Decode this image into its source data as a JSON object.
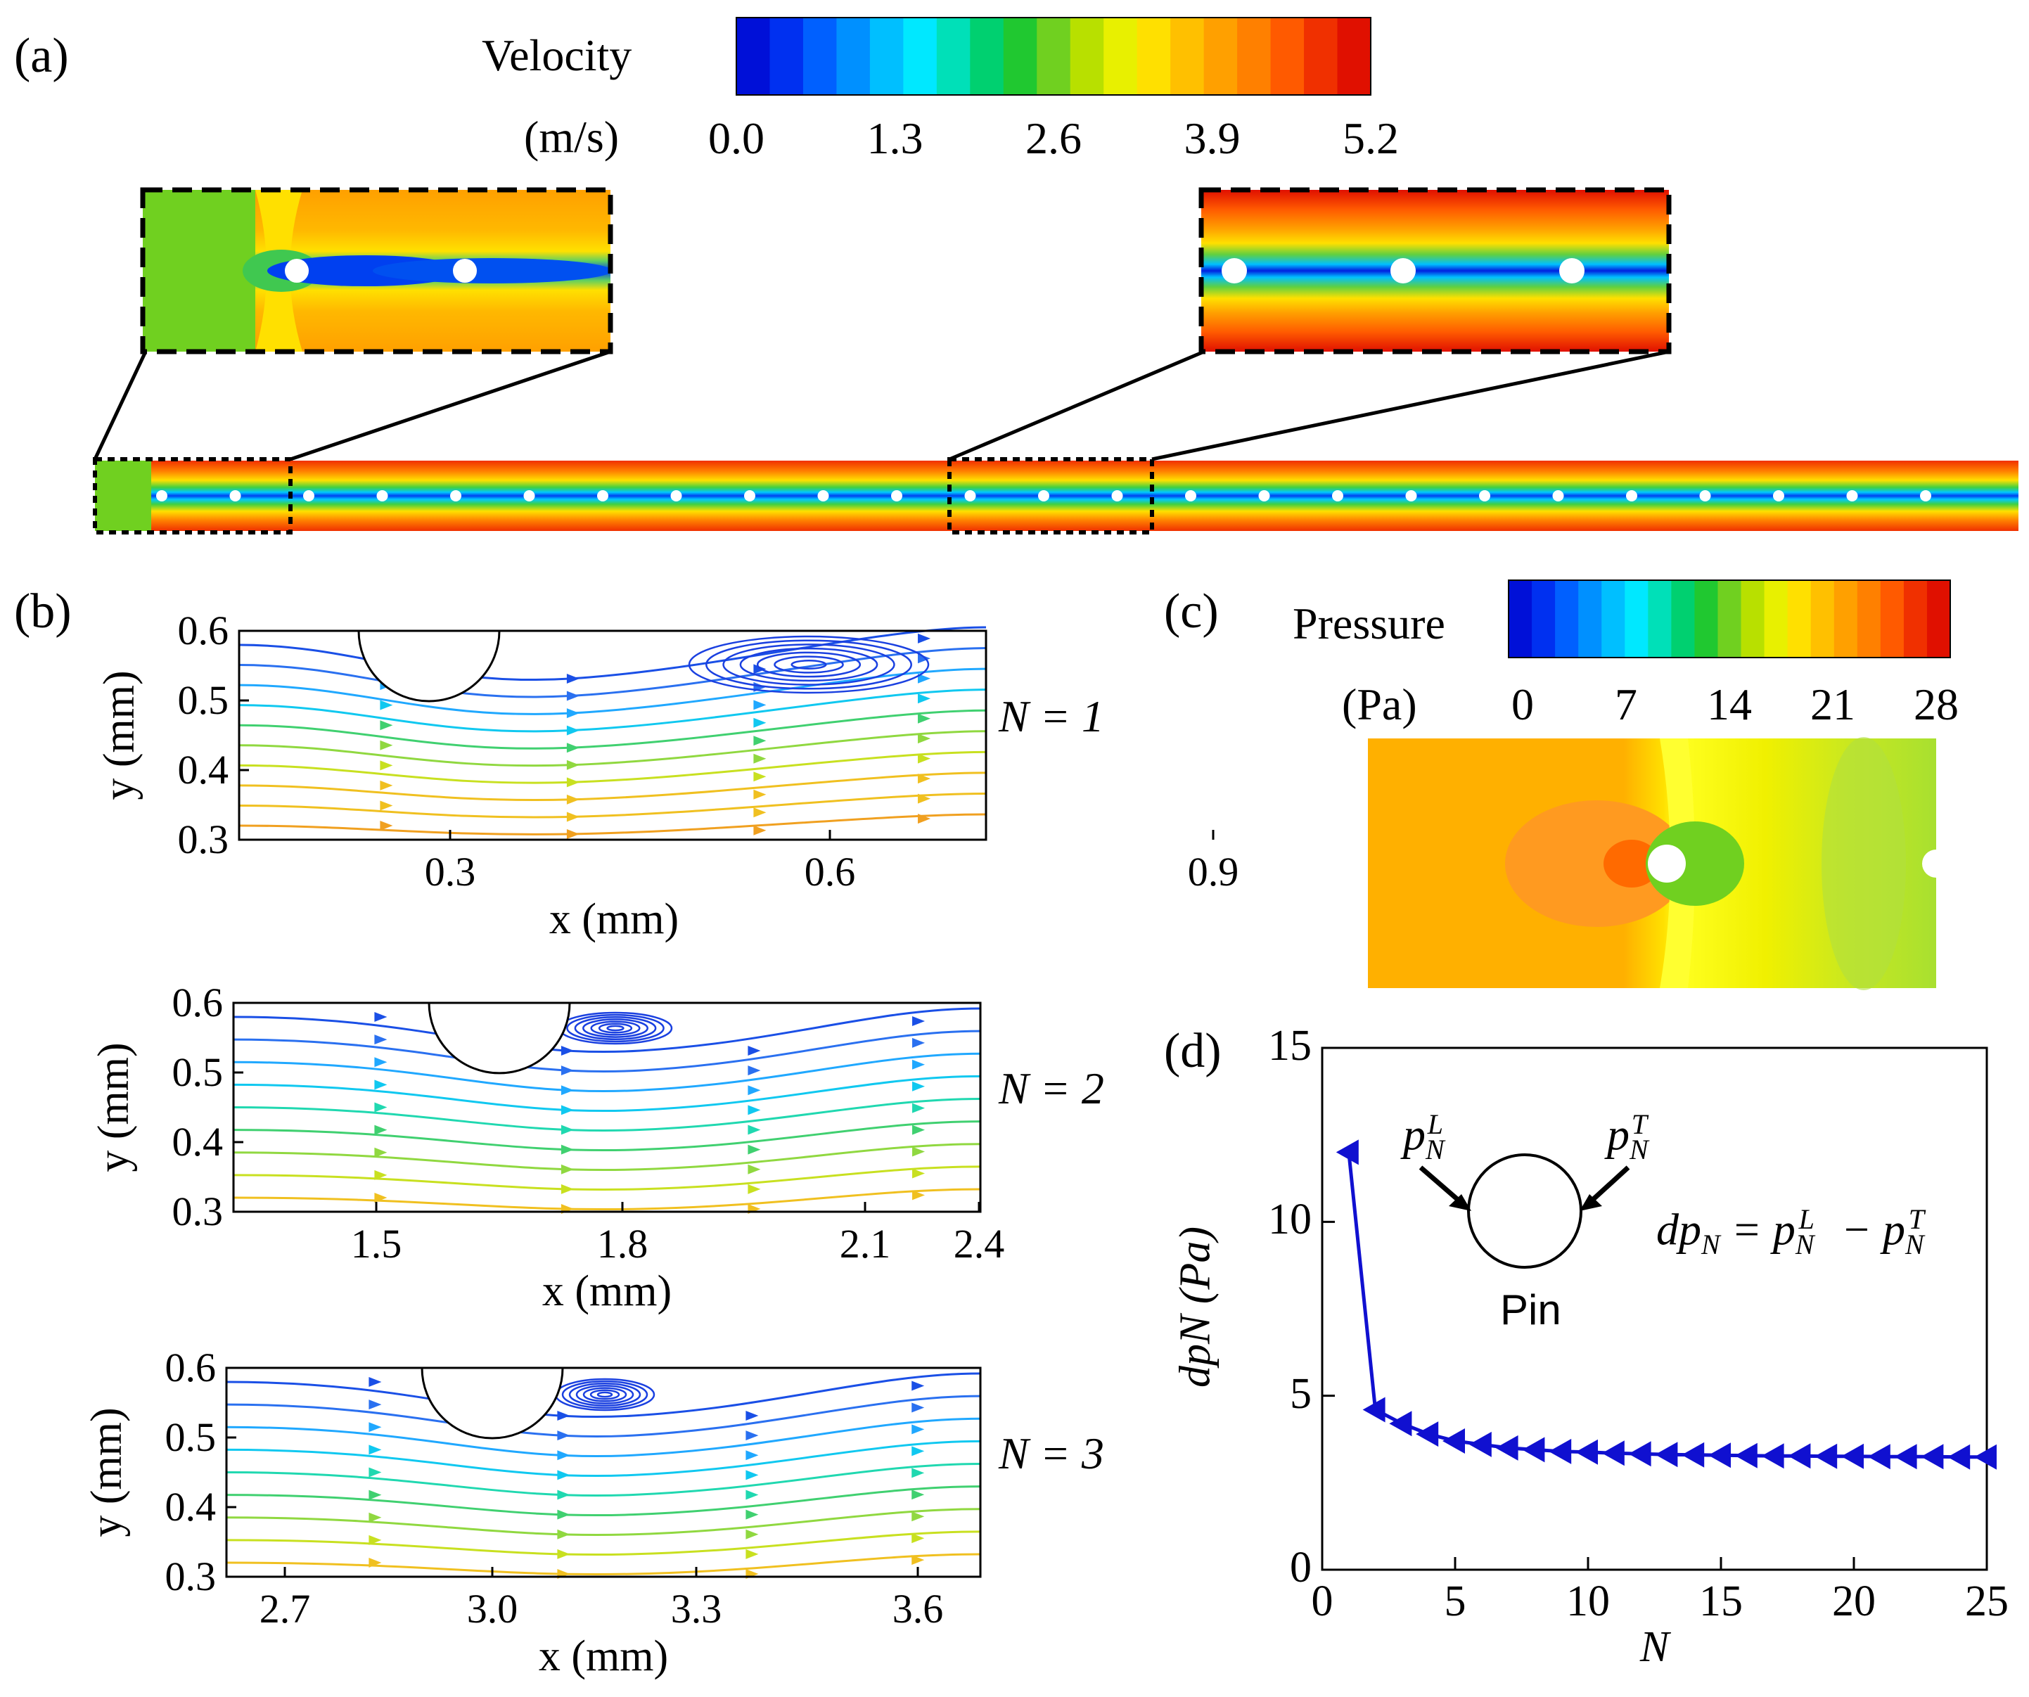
{
  "panels": {
    "a": {
      "label": "(a)",
      "colorbar": {
        "title": "Velocity",
        "unit": "(m/s)",
        "ticks": [
          "0.0",
          "1.3",
          "2.6",
          "3.9",
          "5.2"
        ],
        "colors": [
          "#0010d8",
          "#0030f0",
          "#0060ff",
          "#0090ff",
          "#00bfff",
          "#00e8ff",
          "#00e0b8",
          "#00d070",
          "#20c830",
          "#70d020",
          "#b8e000",
          "#e8f000",
          "#ffe000",
          "#ffc000",
          "#ffa000",
          "#ff8000",
          "#ff5a00",
          "#f03000",
          "#e01000"
        ]
      },
      "pins_count": 25
    },
    "b": {
      "label": "(b)",
      "subplots": [
        {
          "n_label": "N = 1",
          "xlabel": "x (mm)",
          "ylabel": "y (mm)",
          "xticks": [
            "0.3",
            "0.6",
            "0.9"
          ],
          "yticks": [
            "0.6",
            "0.5",
            "0.4",
            "0.3"
          ]
        },
        {
          "n_label": "N = 2",
          "xlabel": "x (mm)",
          "ylabel": "y (mm)",
          "xticks": [
            "1.5",
            "1.8",
            "2.1",
            "2.4"
          ],
          "yticks": [
            "0.6",
            "0.5",
            "0.4",
            "0.3"
          ]
        },
        {
          "n_label": "N = 3",
          "xlabel": "x (mm)",
          "ylabel": "y (mm)",
          "xticks": [
            "2.7",
            "3.0",
            "3.3",
            "3.6"
          ],
          "yticks": [
            "0.6",
            "0.5",
            "0.4",
            "0.3"
          ]
        }
      ]
    },
    "c": {
      "label": "(c)",
      "colorbar": {
        "title": "Pressure",
        "unit": "(Pa)",
        "ticks": [
          "0",
          "7",
          "14",
          "21",
          "28"
        ]
      }
    },
    "d": {
      "label": "(d)",
      "inset": {
        "left": "p",
        "right": "p",
        "sub": "N",
        "sup_left": "L",
        "sup_right": "T",
        "pin": "Pin",
        "eq_lhs": "dp",
        "eq_mid": " = p",
        "eq_minus": " − p"
      }
    }
  },
  "chart_data": {
    "type": "line",
    "title": "",
    "xlabel": "N",
    "ylabel": "dp_N (Pa)",
    "xlim": [
      0,
      25
    ],
    "ylim": [
      0,
      15
    ],
    "xticks": [
      "0",
      "5",
      "10",
      "15",
      "20",
      "25"
    ],
    "yticks": [
      "0",
      "5",
      "10",
      "15"
    ],
    "series": [
      {
        "name": "dp_N",
        "x": [
          1,
          2,
          3,
          4,
          5,
          6,
          7,
          8,
          9,
          10,
          11,
          12,
          13,
          14,
          15,
          16,
          17,
          18,
          19,
          20,
          21,
          22,
          23,
          24,
          25
        ],
        "values": [
          12.0,
          4.6,
          4.2,
          3.9,
          3.7,
          3.6,
          3.5,
          3.45,
          3.4,
          3.38,
          3.35,
          3.33,
          3.31,
          3.3,
          3.29,
          3.28,
          3.27,
          3.27,
          3.26,
          3.26,
          3.25,
          3.25,
          3.25,
          3.24,
          3.24
        ]
      }
    ]
  }
}
